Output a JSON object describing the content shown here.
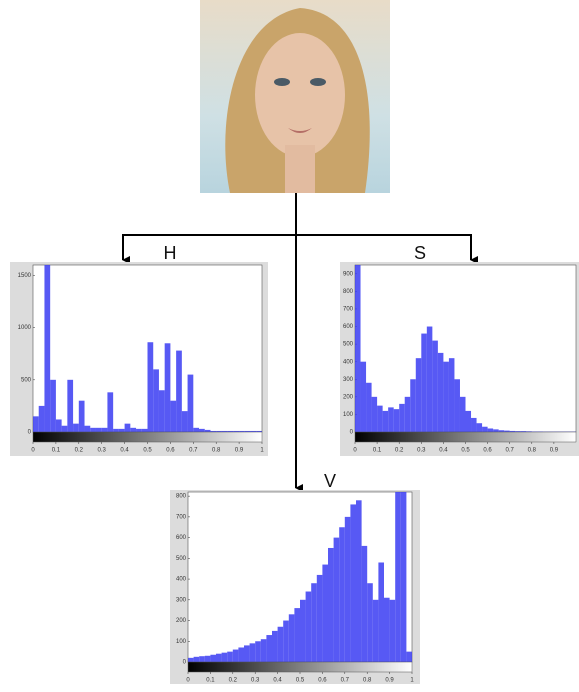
{
  "chart_data": [
    {
      "type": "histogram",
      "title": "H",
      "color": "#3a3cf2",
      "bins": [
        0,
        0.025,
        0.05,
        0.075,
        0.1,
        0.125,
        0.15,
        0.175,
        0.2,
        0.225,
        0.25,
        0.275,
        0.3,
        0.325,
        0.35,
        0.375,
        0.4,
        0.425,
        0.45,
        0.475,
        0.5,
        0.525,
        0.55,
        0.575,
        0.6,
        0.625,
        0.65,
        0.675,
        0.7,
        0.725,
        0.75,
        0.775,
        0.8,
        0.825,
        0.85,
        0.875,
        0.9,
        0.925,
        0.95,
        0.975,
        1
      ],
      "values": [
        150,
        250,
        1600,
        500,
        120,
        60,
        500,
        80,
        300,
        60,
        40,
        40,
        40,
        380,
        30,
        30,
        80,
        40,
        30,
        30,
        860,
        600,
        400,
        850,
        300,
        780,
        200,
        550,
        40,
        30,
        20,
        10,
        10,
        10,
        10,
        10,
        10,
        10,
        10,
        10
      ],
      "xlim": [
        0,
        1
      ],
      "ylim": [
        0,
        1600
      ],
      "xticks": [
        0,
        0.1,
        0.2,
        0.3,
        0.4,
        0.5,
        0.6,
        0.7,
        0.8,
        0.9,
        1
      ],
      "yticks": [
        0,
        500,
        1000,
        1500
      ]
    },
    {
      "type": "histogram",
      "title": "S",
      "color": "#3a3cf2",
      "bins": [
        0,
        0.025,
        0.05,
        0.075,
        0.1,
        0.125,
        0.15,
        0.175,
        0.2,
        0.225,
        0.25,
        0.275,
        0.3,
        0.325,
        0.35,
        0.375,
        0.4,
        0.425,
        0.45,
        0.475,
        0.5,
        0.525,
        0.55,
        0.575,
        0.6,
        0.625,
        0.65,
        0.675,
        0.7,
        0.725,
        0.75,
        0.775,
        0.8,
        0.825,
        0.85,
        0.875,
        0.9,
        0.925,
        0.95,
        0.975,
        1
      ],
      "values": [
        950,
        400,
        280,
        200,
        150,
        120,
        140,
        130,
        160,
        200,
        300,
        420,
        560,
        600,
        520,
        450,
        400,
        420,
        300,
        200,
        120,
        80,
        50,
        30,
        20,
        15,
        10,
        8,
        6,
        5,
        5,
        4,
        3,
        3,
        2,
        2,
        2,
        2,
        2,
        2
      ],
      "xlim": [
        0,
        1
      ],
      "ylim": [
        0,
        950
      ],
      "xticks": [
        0,
        0.1,
        0.2,
        0.3,
        0.4,
        0.5,
        0.6,
        0.7,
        0.8,
        0.9
      ],
      "yticks": [
        0,
        100,
        200,
        300,
        400,
        500,
        600,
        700,
        800,
        900
      ]
    },
    {
      "type": "histogram",
      "title": "V",
      "color": "#3a3cf2",
      "bins": [
        0,
        0.025,
        0.05,
        0.075,
        0.1,
        0.125,
        0.15,
        0.175,
        0.2,
        0.225,
        0.25,
        0.275,
        0.3,
        0.325,
        0.35,
        0.375,
        0.4,
        0.425,
        0.45,
        0.475,
        0.5,
        0.525,
        0.55,
        0.575,
        0.6,
        0.625,
        0.65,
        0.675,
        0.7,
        0.725,
        0.75,
        0.775,
        0.8,
        0.825,
        0.85,
        0.875,
        0.9,
        0.925,
        0.95,
        0.975,
        1
      ],
      "values": [
        20,
        25,
        28,
        30,
        35,
        40,
        45,
        50,
        60,
        70,
        80,
        90,
        100,
        110,
        130,
        150,
        170,
        200,
        230,
        260,
        300,
        340,
        380,
        420,
        470,
        550,
        600,
        650,
        700,
        760,
        780,
        560,
        380,
        300,
        480,
        310,
        300,
        820,
        820,
        50
      ],
      "xlim": [
        0,
        1
      ],
      "ylim": [
        0,
        820
      ],
      "xticks": [
        0,
        0.1,
        0.2,
        0.3,
        0.4,
        0.5,
        0.6,
        0.7,
        0.8,
        0.9,
        1
      ],
      "yticks": [
        0,
        100,
        200,
        300,
        400,
        500,
        600,
        700,
        800
      ]
    }
  ]
}
